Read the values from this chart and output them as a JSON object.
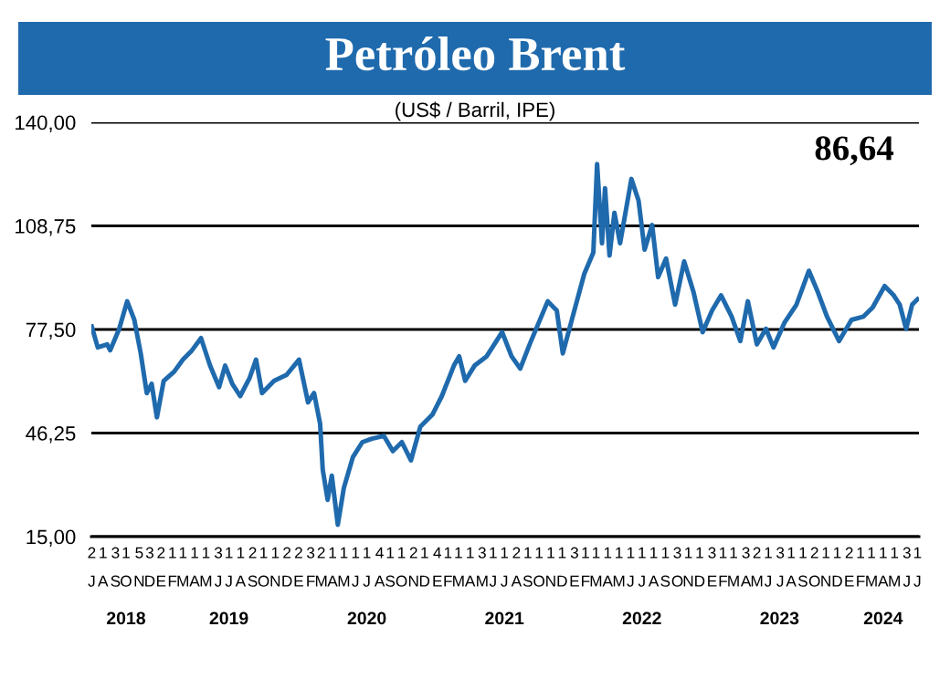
{
  "chart_data": {
    "type": "line",
    "title": "Petróleo Brent",
    "subtitle": "(US$ / Barril, IPE)",
    "annotations": [
      "86,64"
    ],
    "x": [
      "2018-07-02",
      "2018-07-18",
      "2018-08-12",
      "2018-08-20",
      "2018-09-13",
      "2018-10-04",
      "2018-10-23",
      "2018-11-09",
      "2018-11-25",
      "2018-12-08",
      "2018-12-22",
      "2019-01-09",
      "2019-02-06",
      "2019-03-01",
      "2019-03-25",
      "2019-04-18",
      "2019-05-12",
      "2019-06-05",
      "2019-06-21",
      "2019-07-10",
      "2019-07-31",
      "2019-08-25",
      "2019-09-11",
      "2019-09-27",
      "2019-10-29",
      "2019-12-01",
      "2020-01-03",
      "2020-01-27",
      "2020-02-12",
      "2020-02-28",
      "2020-03-06",
      "2020-03-19",
      "2020-03-30",
      "2020-04-15",
      "2020-05-01",
      "2020-05-25",
      "2020-06-19",
      "2020-07-13",
      "2020-08-15",
      "2020-09-08",
      "2020-10-02",
      "2020-10-26",
      "2020-11-20",
      "2020-12-22",
      "2021-01-16",
      "2021-02-17",
      "2021-03-03",
      "2021-03-19",
      "2021-04-13",
      "2021-05-15",
      "2021-06-25",
      "2021-07-20",
      "2021-08-12",
      "2021-09-06",
      "2021-10-24",
      "2021-11-17",
      "2021-12-03",
      "2021-12-27",
      "2022-01-29",
      "2022-02-22",
      "2022-03-04",
      "2022-03-17",
      "2022-03-25",
      "2022-04-06",
      "2022-04-19",
      "2022-05-04",
      "2022-06-03",
      "2022-06-22",
      "2022-07-08",
      "2022-07-28",
      "2022-08-13",
      "2022-09-03",
      "2022-09-27",
      "2022-10-21",
      "2022-11-15",
      "2022-12-09",
      "2023-01-03",
      "2023-01-27",
      "2023-02-24",
      "2023-03-19",
      "2023-04-08",
      "2023-05-02",
      "2023-05-26",
      "2023-06-15",
      "2023-07-14",
      "2023-08-15",
      "2023-09-17",
      "2023-10-11",
      "2023-11-04",
      "2023-12-06",
      "2024-01-08",
      "2024-02-09",
      "2024-03-04",
      "2024-04-05",
      "2024-04-29",
      "2024-05-15",
      "2024-06-01",
      "2024-06-17",
      "2024-07-01"
    ],
    "series": [
      {
        "color": "#1f6aad",
        "values": [
          78.4,
          72.1,
          73,
          71.2,
          77.7,
          86,
          80.4,
          70.3,
          58.3,
          61.1,
          51,
          62,
          64.8,
          68.4,
          71.2,
          74.9,
          66.6,
          60.1,
          66.6,
          61.1,
          57.4,
          62.9,
          68.4,
          58.3,
          62,
          63.8,
          68.4,
          55.5,
          58.3,
          49.1,
          35.2,
          26.1,
          33.4,
          18.6,
          29.7,
          39,
          43.5,
          44.5,
          45.4,
          40.8,
          43.5,
          38,
          48.2,
          51.8,
          57.4,
          66.6,
          69.4,
          62,
          66.6,
          69.4,
          76.7,
          69.4,
          65.7,
          73,
          86,
          83.2,
          70.3,
          80.4,
          94.3,
          100.7,
          127.4,
          103.5,
          120.1,
          99.8,
          112.7,
          103.5,
          122.9,
          116.4,
          101.6,
          109,
          93.3,
          98.9,
          85,
          98,
          88.7,
          76.7,
          83.2,
          87.8,
          81.4,
          74,
          86,
          73,
          77.7,
          72.1,
          79.5,
          85,
          95.2,
          88.7,
          81.4,
          74,
          80.4,
          81.4,
          84.1,
          90.6,
          87.8,
          85,
          77.7,
          85,
          86.6
        ]
      }
    ],
    "xlim": [
      "2018-07-01",
      "2024-07-05"
    ],
    "xticks": [
      {
        "value": "2018-07-02",
        "label": "2\nJ"
      },
      {
        "value": "2018-08-01",
        "label": "1\nA"
      },
      {
        "value": "2018-09-03",
        "label": "3\nS"
      },
      {
        "value": "2018-10-01",
        "label": "1\nO"
      },
      {
        "value": "2018-11-05",
        "label": "5\nN"
      },
      {
        "value": "2018-12-03",
        "label": "3\nD"
      },
      {
        "value": "2019-01-02",
        "label": "2\nE"
      },
      {
        "value": "2019-02-01",
        "label": "1\nF"
      },
      {
        "value": "2019-03-01",
        "label": "1\nM"
      },
      {
        "value": "2019-04-01",
        "label": "1\nA"
      },
      {
        "value": "2019-05-01",
        "label": "1\nM"
      },
      {
        "value": "2019-06-03",
        "label": "3\nJ"
      },
      {
        "value": "2019-07-01",
        "label": "1\nJ"
      },
      {
        "value": "2019-08-01",
        "label": "1\nA"
      },
      {
        "value": "2019-09-02",
        "label": "2\nS"
      },
      {
        "value": "2019-10-01",
        "label": "1\nO"
      },
      {
        "value": "2019-11-01",
        "label": "1\nN"
      },
      {
        "value": "2019-12-02",
        "label": "2\nD"
      },
      {
        "value": "2020-01-02",
        "label": "2\nE"
      },
      {
        "value": "2020-02-03",
        "label": "3\nF"
      },
      {
        "value": "2020-03-02",
        "label": "2\nM"
      },
      {
        "value": "2020-04-01",
        "label": "1\nA"
      },
      {
        "value": "2020-05-01",
        "label": "1\nM"
      },
      {
        "value": "2020-06-01",
        "label": "1\nJ"
      },
      {
        "value": "2020-07-01",
        "label": "1\nJ"
      },
      {
        "value": "2020-08-04",
        "label": "4\nA"
      },
      {
        "value": "2020-09-01",
        "label": "1\nS"
      },
      {
        "value": "2020-10-01",
        "label": "1\nO"
      },
      {
        "value": "2020-11-02",
        "label": "2\nN"
      },
      {
        "value": "2020-12-01",
        "label": "1\nD"
      },
      {
        "value": "2021-01-04",
        "label": "4\nE"
      },
      {
        "value": "2021-02-01",
        "label": "1\nF"
      },
      {
        "value": "2021-03-01",
        "label": "1\nM"
      },
      {
        "value": "2021-04-01",
        "label": "1\nA"
      },
      {
        "value": "2021-05-03",
        "label": "3\nM"
      },
      {
        "value": "2021-06-01",
        "label": "1\nJ"
      },
      {
        "value": "2021-07-01",
        "label": "1\nJ"
      },
      {
        "value": "2021-08-02",
        "label": "2\nA"
      },
      {
        "value": "2021-09-01",
        "label": "1\nS"
      },
      {
        "value": "2021-10-01",
        "label": "1\nO"
      },
      {
        "value": "2021-11-01",
        "label": "1\nN"
      },
      {
        "value": "2021-12-01",
        "label": "1\nD"
      },
      {
        "value": "2022-01-03",
        "label": "3\nE"
      },
      {
        "value": "2022-02-01",
        "label": "1\nF"
      },
      {
        "value": "2022-03-01",
        "label": "1\nM"
      },
      {
        "value": "2022-04-01",
        "label": "1\nA"
      },
      {
        "value": "2022-05-01",
        "label": "1\nM"
      },
      {
        "value": "2022-06-01",
        "label": "1\nJ"
      },
      {
        "value": "2022-07-01",
        "label": "1\nJ"
      },
      {
        "value": "2022-08-01",
        "label": "1\nA"
      },
      {
        "value": "2022-09-01",
        "label": "1\nS"
      },
      {
        "value": "2022-10-03",
        "label": "3\nO"
      },
      {
        "value": "2022-11-01",
        "label": "1\nN"
      },
      {
        "value": "2022-12-01",
        "label": "1\nD"
      },
      {
        "value": "2023-01-03",
        "label": "3\nE"
      },
      {
        "value": "2023-02-01",
        "label": "1\nF"
      },
      {
        "value": "2023-03-01",
        "label": "1\nM"
      },
      {
        "value": "2023-04-03",
        "label": "3\nA"
      },
      {
        "value": "2023-05-02",
        "label": "2\nM"
      },
      {
        "value": "2023-06-01",
        "label": "1\nJ"
      },
      {
        "value": "2023-07-03",
        "label": "3\nJ"
      },
      {
        "value": "2023-08-01",
        "label": "1\nA"
      },
      {
        "value": "2023-09-01",
        "label": "1\nS"
      },
      {
        "value": "2023-10-02",
        "label": "2\nO"
      },
      {
        "value": "2023-11-01",
        "label": "1\nN"
      },
      {
        "value": "2023-12-01",
        "label": "1\nD"
      },
      {
        "value": "2024-01-02",
        "label": "2\nE"
      },
      {
        "value": "2024-02-01",
        "label": "1\nF"
      },
      {
        "value": "2024-03-01",
        "label": "1\nM"
      },
      {
        "value": "2024-04-01",
        "label": "1\nA"
      },
      {
        "value": "2024-05-01",
        "label": "1\nM"
      },
      {
        "value": "2024-06-03",
        "label": "3\nJ"
      },
      {
        "value": "2024-07-01",
        "label": "1\nJ"
      }
    ],
    "x2lim": [
      "2018-07-01",
      "2024-07-05"
    ],
    "x2ticks": [
      {
        "value": "2018-10-01",
        "label": "2018"
      },
      {
        "value": "2019-07-01",
        "label": "2019"
      },
      {
        "value": "2020-07-01",
        "label": "2020"
      },
      {
        "value": "2021-07-01",
        "label": "2021"
      },
      {
        "value": "2022-07-01",
        "label": "2022"
      },
      {
        "value": "2023-07-01",
        "label": "2023"
      },
      {
        "value": "2024-04-01",
        "label": "2024"
      }
    ],
    "ylim": [
      15,
      140
    ],
    "yticks": [
      {
        "value": 15,
        "label": "15,00"
      },
      {
        "value": 46.25,
        "label": "46,25"
      },
      {
        "value": 77.5,
        "label": "77,50"
      },
      {
        "value": 108.75,
        "label": "108,75"
      },
      {
        "value": 140,
        "label": "140,00"
      }
    ],
    "grid": "y",
    "marker": "none",
    "line_style": "solid"
  }
}
